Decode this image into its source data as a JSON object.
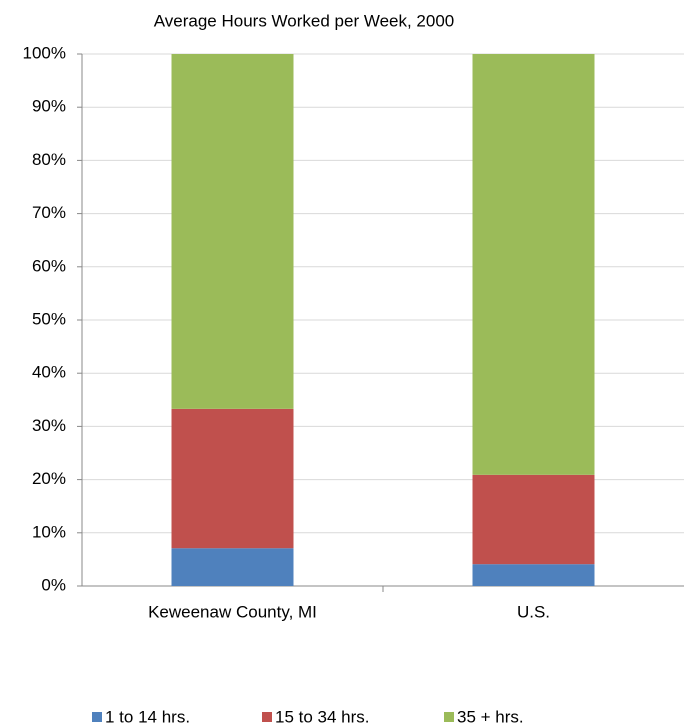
{
  "chart_data": {
    "type": "stacked_bar",
    "title": "Average Hours Worked per Week, 2000",
    "categories": [
      "Keweenaw County, MI",
      "U.S."
    ],
    "series": [
      {
        "name": "1 to 14 hrs.",
        "color": "#4f81bd",
        "values": [
          7.1,
          4.1
        ]
      },
      {
        "name": "15 to 34 hrs.",
        "color": "#c0504d",
        "values": [
          26.2,
          16.8
        ]
      },
      {
        "name": "35 + hrs.",
        "color": "#9bbb59",
        "values": [
          66.7,
          79.1
        ]
      }
    ],
    "ylim": [
      0,
      100
    ],
    "yticks": [
      {
        "value": 0,
        "label": "0%"
      },
      {
        "value": 10,
        "label": "10%"
      },
      {
        "value": 20,
        "label": "20%"
      },
      {
        "value": 30,
        "label": "30%"
      },
      {
        "value": 40,
        "label": "40%"
      },
      {
        "value": 50,
        "label": "50%"
      },
      {
        "value": 60,
        "label": "60%"
      },
      {
        "value": 70,
        "label": "70%"
      },
      {
        "value": 80,
        "label": "80%"
      },
      {
        "value": 90,
        "label": "90%"
      },
      {
        "value": 100,
        "label": "100%"
      }
    ],
    "grid": true,
    "legend": "bottom"
  }
}
